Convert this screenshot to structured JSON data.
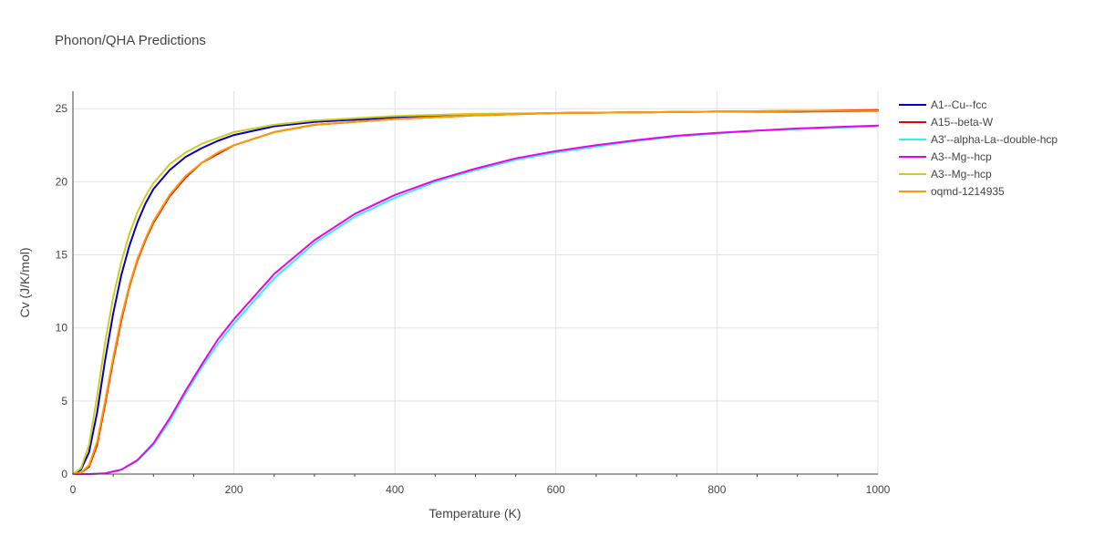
{
  "chart_data": {
    "type": "line",
    "title": "Phonon/QHA Predictions",
    "xlabel": "Temperature (K)",
    "ylabel": "Cv (J/K/mol)",
    "xlim": [
      0,
      1000
    ],
    "ylim": [
      0,
      26.2
    ],
    "xticks": [
      0,
      200,
      400,
      600,
      800,
      1000
    ],
    "yticks": [
      0,
      5,
      10,
      15,
      20,
      25
    ],
    "grid": true,
    "legend_position": "right",
    "series": [
      {
        "name": "A1--Cu--fcc",
        "color": "#0000cc",
        "x": [
          0,
          10,
          20,
          30,
          40,
          50,
          60,
          70,
          80,
          90,
          100,
          120,
          140,
          160,
          180,
          200,
          250,
          300,
          400,
          500,
          600,
          700,
          800,
          900,
          1000
        ],
        "y": [
          0,
          0.3,
          1.5,
          4.2,
          7.8,
          11.0,
          13.6,
          15.6,
          17.2,
          18.5,
          19.5,
          20.8,
          21.7,
          22.3,
          22.8,
          23.2,
          23.8,
          24.1,
          24.4,
          24.6,
          24.7,
          24.75,
          24.8,
          24.8,
          24.85
        ]
      },
      {
        "name": "A15--beta-W",
        "color": "#ee0000",
        "x": [
          0,
          10,
          20,
          30,
          40,
          50,
          60,
          70,
          80,
          90,
          100,
          120,
          140,
          160,
          180,
          200,
          250,
          300,
          400,
          500,
          600,
          700,
          800,
          900,
          1000
        ],
        "y": [
          0,
          0.1,
          0.5,
          2.0,
          4.8,
          7.8,
          10.5,
          12.8,
          14.6,
          16.0,
          17.2,
          19.0,
          20.3,
          21.3,
          21.9,
          22.5,
          23.4,
          23.9,
          24.3,
          24.55,
          24.7,
          24.75,
          24.8,
          24.85,
          24.9
        ]
      },
      {
        "name": "A3'--alpha-La--double-hcp",
        "color": "#33eeee",
        "x": [
          0,
          20,
          40,
          60,
          80,
          100,
          120,
          140,
          160,
          180,
          200,
          250,
          300,
          350,
          400,
          450,
          500,
          550,
          600,
          650,
          700,
          750,
          800,
          850,
          900,
          950,
          1000
        ],
        "y": [
          0,
          0,
          0.05,
          0.3,
          0.9,
          2.0,
          3.6,
          5.5,
          7.3,
          8.9,
          10.3,
          13.4,
          15.8,
          17.6,
          18.9,
          20.0,
          20.8,
          21.5,
          22.0,
          22.4,
          22.8,
          23.1,
          23.3,
          23.5,
          23.6,
          23.7,
          23.8
        ]
      },
      {
        "name": "A3--Mg--hcp",
        "color": "#ee00ee",
        "x": [
          0,
          20,
          40,
          60,
          80,
          100,
          120,
          140,
          160,
          180,
          200,
          250,
          300,
          350,
          400,
          450,
          500,
          550,
          600,
          650,
          700,
          750,
          800,
          850,
          900,
          950,
          1000
        ],
        "y": [
          0,
          0,
          0.05,
          0.3,
          0.95,
          2.1,
          3.8,
          5.7,
          7.5,
          9.2,
          10.6,
          13.7,
          16.0,
          17.8,
          19.1,
          20.1,
          20.9,
          21.6,
          22.1,
          22.5,
          22.85,
          23.15,
          23.35,
          23.5,
          23.65,
          23.75,
          23.85
        ]
      },
      {
        "name": "A3--Mg--hcp",
        "color": "#cccc22",
        "x": [
          0,
          10,
          20,
          30,
          40,
          50,
          60,
          70,
          80,
          90,
          100,
          120,
          140,
          160,
          180,
          200,
          250,
          300,
          400,
          500,
          600,
          700,
          800,
          900,
          1000
        ],
        "y": [
          0,
          0.4,
          2.0,
          5.3,
          9.0,
          12.1,
          14.5,
          16.4,
          17.9,
          19.0,
          19.9,
          21.2,
          22.0,
          22.6,
          23.0,
          23.4,
          23.9,
          24.2,
          24.5,
          24.65,
          24.7,
          24.75,
          24.8,
          24.85,
          24.85
        ]
      },
      {
        "name": "oqmd-1214935",
        "color": "#ff9900",
        "x": [
          0,
          10,
          20,
          30,
          40,
          50,
          60,
          70,
          80,
          90,
          100,
          120,
          140,
          160,
          180,
          200,
          250,
          300,
          400,
          500,
          600,
          700,
          800,
          900,
          1000
        ],
        "y": [
          0,
          0.1,
          0.6,
          2.2,
          5.0,
          8.0,
          10.7,
          12.9,
          14.7,
          16.1,
          17.3,
          19.1,
          20.4,
          21.3,
          22.0,
          22.5,
          23.4,
          23.9,
          24.3,
          24.55,
          24.7,
          24.75,
          24.8,
          24.85,
          24.85
        ]
      }
    ]
  }
}
